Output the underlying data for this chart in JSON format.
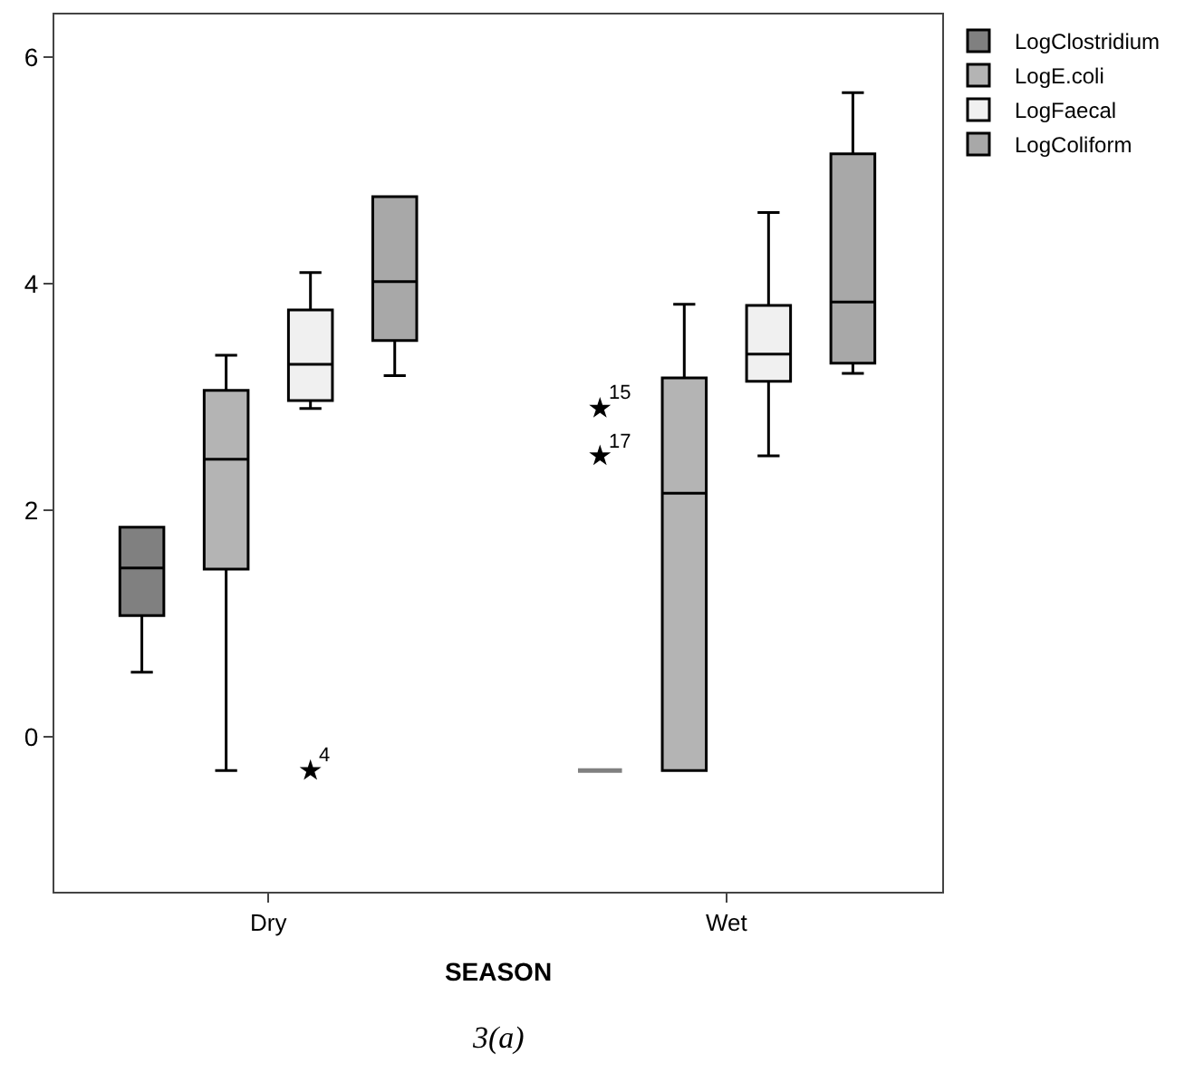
{
  "chart_data": {
    "type": "box",
    "xlabel": "SEASON",
    "categories": [
      "Dry",
      "Wet"
    ],
    "series": [
      {
        "name": "LogClostridium",
        "color": "#808080",
        "boxes": [
          {
            "low": 0.57,
            "q1": 1.07,
            "median": 1.49,
            "q3": 1.85,
            "high": 1.85
          },
          {
            "low": -0.3,
            "q1": -0.3,
            "median": -0.3,
            "q3": -0.3,
            "high": -0.3,
            "outliers": [
              2.9,
              2.48
            ]
          }
        ]
      },
      {
        "name": "LogE.coli",
        "color": "#b4b4b4",
        "boxes": [
          {
            "low": -0.3,
            "q1": 1.48,
            "median": 2.45,
            "q3": 3.06,
            "high": 3.37
          },
          {
            "low": -0.3,
            "q1": -0.3,
            "median": 2.15,
            "q3": 3.17,
            "high": 3.82
          }
        ]
      },
      {
        "name": "LogFaecal",
        "color": "#f0f0f0",
        "boxes": [
          {
            "low": 2.9,
            "q1": 2.97,
            "median": 3.29,
            "q3": 3.77,
            "high": 4.1,
            "outliers": [
              -0.3
            ]
          },
          {
            "low": 2.48,
            "q1": 3.14,
            "median": 3.38,
            "q3": 3.81,
            "high": 4.63
          }
        ]
      },
      {
        "name": "LogColiform",
        "color": "#a8a8a8",
        "boxes": [
          {
            "low": 3.19,
            "q1": 3.5,
            "median": 4.02,
            "q3": 4.77,
            "high": 4.77
          },
          {
            "low": 3.21,
            "q1": 3.3,
            "median": 3.84,
            "q3": 5.15,
            "high": 5.69
          }
        ]
      }
    ],
    "annotations": [
      "4",
      "15",
      "17",
      "3(a)"
    ],
    "ylim": [
      -1.37,
      6.38
    ],
    "yticks": [
      0,
      2,
      4,
      6
    ],
    "legend": "top right",
    "marker": "star"
  }
}
